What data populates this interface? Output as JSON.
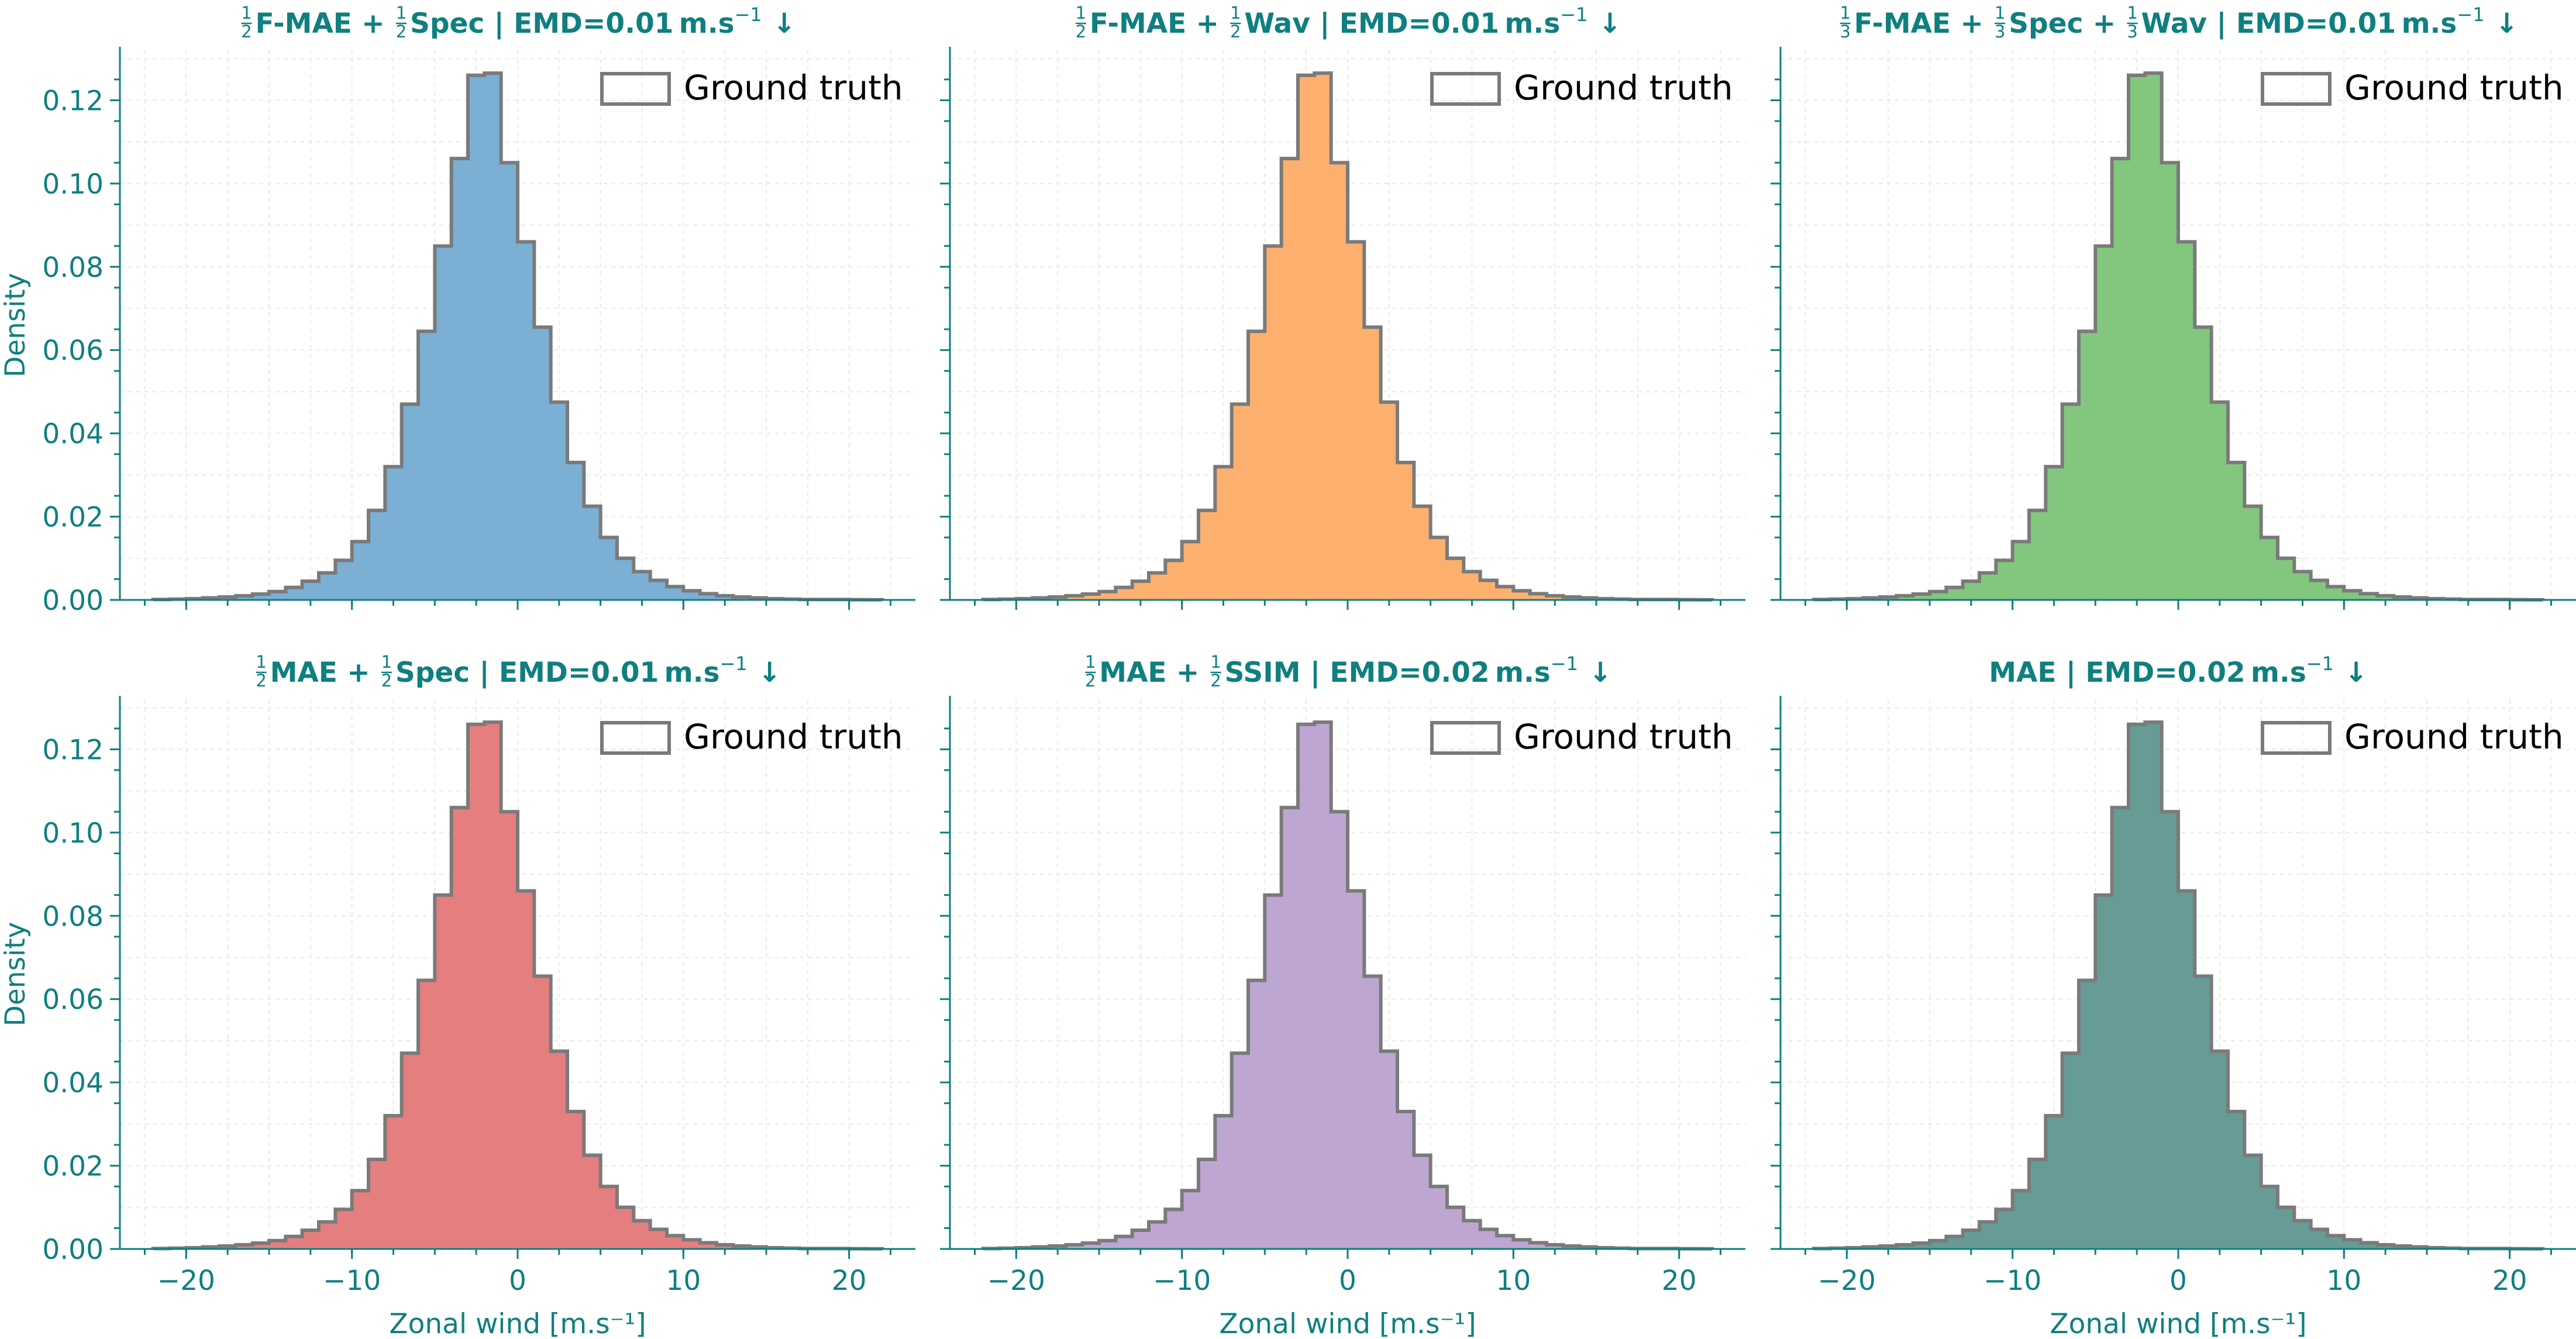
{
  "figure": {
    "accent_color": "#0f7f7f",
    "ylabel": "Density",
    "xlabel": "Zonal wind [m.s⁻¹]",
    "legend_label": "Ground truth",
    "legend_loc": "upper right",
    "grid": true
  },
  "chart_data": [
    {
      "type": "histogram",
      "color": "#7bafd4",
      "title": "½F-MAE + ½Spec | EMD=0.01 m.s⁻¹ ↓",
      "title_parts": [
        {
          "kind": "frac",
          "num": "1",
          "den": "2"
        },
        {
          "kind": "text",
          "text": "F-MAE + "
        },
        {
          "kind": "frac",
          "num": "1",
          "den": "2"
        },
        {
          "kind": "text",
          "text": "Spec | EMD=0.01 m.s"
        },
        {
          "kind": "sup",
          "text": "−1"
        },
        {
          "kind": "text",
          "text": " ↓"
        }
      ],
      "xlim": [
        -24,
        24
      ],
      "ylim": [
        0,
        0.132
      ],
      "xticks": [
        -20,
        -10,
        0,
        10,
        20
      ],
      "yticks": [
        0.0,
        0.02,
        0.04,
        0.06,
        0.08,
        0.1,
        0.12
      ],
      "bin_edges_start": -22,
      "bin_width": 1.0,
      "density": [
        0.0001,
        0.0002,
        0.0003,
        0.0005,
        0.0007,
        0.001,
        0.0014,
        0.002,
        0.003,
        0.0045,
        0.0065,
        0.0095,
        0.014,
        0.0215,
        0.032,
        0.047,
        0.0645,
        0.085,
        0.106,
        0.126,
        0.1265,
        0.105,
        0.086,
        0.0655,
        0.0475,
        0.033,
        0.0225,
        0.015,
        0.01,
        0.0068,
        0.0047,
        0.0032,
        0.0022,
        0.0015,
        0.001,
        0.0007,
        0.0005,
        0.0003,
        0.0002,
        0.0001,
        0.0001,
        0.0001,
        5e-05,
        3e-05
      ]
    },
    {
      "type": "histogram",
      "color": "#fdb06e",
      "title": "½F-MAE + ½Wav | EMD=0.01 m.s⁻¹ ↓",
      "title_parts": [
        {
          "kind": "frac",
          "num": "1",
          "den": "2"
        },
        {
          "kind": "text",
          "text": "F-MAE + "
        },
        {
          "kind": "frac",
          "num": "1",
          "den": "2"
        },
        {
          "kind": "text",
          "text": "Wav | EMD=0.01 m.s"
        },
        {
          "kind": "sup",
          "text": "−1"
        },
        {
          "kind": "text",
          "text": " ↓"
        }
      ],
      "xlim": [
        -24,
        24
      ],
      "ylim": [
        0,
        0.132
      ],
      "xticks": [
        -20,
        -10,
        0,
        10,
        20
      ],
      "yticks": [
        0.0,
        0.02,
        0.04,
        0.06,
        0.08,
        0.1,
        0.12
      ],
      "bin_edges_start": -22,
      "bin_width": 1.0,
      "density": [
        0.0001,
        0.0002,
        0.0003,
        0.0005,
        0.0007,
        0.001,
        0.0014,
        0.002,
        0.003,
        0.0045,
        0.0065,
        0.0095,
        0.014,
        0.0215,
        0.032,
        0.047,
        0.0645,
        0.085,
        0.106,
        0.126,
        0.1265,
        0.105,
        0.086,
        0.0655,
        0.0475,
        0.033,
        0.0225,
        0.015,
        0.01,
        0.0068,
        0.0047,
        0.0032,
        0.0022,
        0.0015,
        0.001,
        0.0007,
        0.0005,
        0.0003,
        0.0002,
        0.0001,
        0.0001,
        0.0001,
        5e-05,
        3e-05
      ]
    },
    {
      "type": "histogram",
      "color": "#83c67e",
      "title": "⅓F-MAE + ⅓Spec + ⅓Wav | EMD=0.01 m.s⁻¹ ↓",
      "title_parts": [
        {
          "kind": "frac",
          "num": "1",
          "den": "3"
        },
        {
          "kind": "text",
          "text": "F-MAE + "
        },
        {
          "kind": "frac",
          "num": "1",
          "den": "3"
        },
        {
          "kind": "text",
          "text": "Spec + "
        },
        {
          "kind": "frac",
          "num": "1",
          "den": "3"
        },
        {
          "kind": "text",
          "text": "Wav | EMD=0.01 m.s"
        },
        {
          "kind": "sup",
          "text": "−1"
        },
        {
          "kind": "text",
          "text": " ↓"
        }
      ],
      "xlim": [
        -24,
        24
      ],
      "ylim": [
        0,
        0.132
      ],
      "xticks": [
        -20,
        -10,
        0,
        10,
        20
      ],
      "yticks": [
        0.0,
        0.02,
        0.04,
        0.06,
        0.08,
        0.1,
        0.12
      ],
      "bin_edges_start": -22,
      "bin_width": 1.0,
      "density": [
        0.0001,
        0.0002,
        0.0003,
        0.0005,
        0.0007,
        0.001,
        0.0014,
        0.002,
        0.003,
        0.0045,
        0.0065,
        0.0095,
        0.014,
        0.0215,
        0.032,
        0.047,
        0.0645,
        0.085,
        0.106,
        0.126,
        0.1265,
        0.105,
        0.086,
        0.0655,
        0.0475,
        0.033,
        0.0225,
        0.015,
        0.01,
        0.0068,
        0.0047,
        0.0032,
        0.0022,
        0.0015,
        0.001,
        0.0007,
        0.0005,
        0.0003,
        0.0002,
        0.0001,
        0.0001,
        0.0001,
        5e-05,
        3e-05
      ]
    },
    {
      "type": "histogram",
      "color": "#e57e7f",
      "title": "½MAE + ½Spec | EMD=0.01 m.s⁻¹ ↓",
      "title_parts": [
        {
          "kind": "frac",
          "num": "1",
          "den": "2"
        },
        {
          "kind": "text",
          "text": "MAE + "
        },
        {
          "kind": "frac",
          "num": "1",
          "den": "2"
        },
        {
          "kind": "text",
          "text": "Spec | EMD=0.01 m.s"
        },
        {
          "kind": "sup",
          "text": "−1"
        },
        {
          "kind": "text",
          "text": " ↓"
        }
      ],
      "xlim": [
        -24,
        24
      ],
      "ylim": [
        0,
        0.132
      ],
      "xticks": [
        -20,
        -10,
        0,
        10,
        20
      ],
      "yticks": [
        0.0,
        0.02,
        0.04,
        0.06,
        0.08,
        0.1,
        0.12
      ],
      "bin_edges_start": -22,
      "bin_width": 1.0,
      "density": [
        0.0001,
        0.0002,
        0.0003,
        0.0005,
        0.0007,
        0.001,
        0.0014,
        0.002,
        0.003,
        0.0045,
        0.0065,
        0.0095,
        0.014,
        0.0215,
        0.032,
        0.047,
        0.0645,
        0.085,
        0.106,
        0.126,
        0.1265,
        0.105,
        0.086,
        0.0655,
        0.0475,
        0.033,
        0.0225,
        0.015,
        0.01,
        0.0068,
        0.0047,
        0.0032,
        0.0022,
        0.0015,
        0.001,
        0.0007,
        0.0005,
        0.0003,
        0.0002,
        0.0001,
        0.0001,
        0.0001,
        5e-05,
        3e-05
      ]
    },
    {
      "type": "histogram",
      "color": "#bea6d3",
      "title": "½MAE + ½SSIM | EMD=0.02 m.s⁻¹ ↓",
      "title_parts": [
        {
          "kind": "frac",
          "num": "1",
          "den": "2"
        },
        {
          "kind": "text",
          "text": "MAE + "
        },
        {
          "kind": "frac",
          "num": "1",
          "den": "2"
        },
        {
          "kind": "text",
          "text": "SSIM | EMD=0.02 m.s"
        },
        {
          "kind": "sup",
          "text": "−1"
        },
        {
          "kind": "text",
          "text": " ↓"
        }
      ],
      "xlim": [
        -24,
        24
      ],
      "ylim": [
        0,
        0.132
      ],
      "xticks": [
        -20,
        -10,
        0,
        10,
        20
      ],
      "yticks": [
        0.0,
        0.02,
        0.04,
        0.06,
        0.08,
        0.1,
        0.12
      ],
      "bin_edges_start": -22,
      "bin_width": 1.0,
      "density": [
        0.0001,
        0.0002,
        0.0003,
        0.0005,
        0.0007,
        0.001,
        0.0014,
        0.002,
        0.003,
        0.0045,
        0.0065,
        0.0095,
        0.014,
        0.0215,
        0.032,
        0.047,
        0.0645,
        0.085,
        0.106,
        0.126,
        0.1265,
        0.105,
        0.086,
        0.0655,
        0.0475,
        0.033,
        0.0225,
        0.015,
        0.01,
        0.0068,
        0.0047,
        0.0032,
        0.0022,
        0.0015,
        0.001,
        0.0007,
        0.0005,
        0.0003,
        0.0002,
        0.0001,
        0.0001,
        0.0001,
        5e-05,
        3e-05
      ]
    },
    {
      "type": "histogram",
      "color": "#669b96",
      "title": "MAE | EMD=0.02 m.s⁻¹ ↓",
      "title_parts": [
        {
          "kind": "text",
          "text": "MAE | EMD=0.02 m.s"
        },
        {
          "kind": "sup",
          "text": "−1"
        },
        {
          "kind": "text",
          "text": " ↓"
        }
      ],
      "xlim": [
        -24,
        24
      ],
      "ylim": [
        0,
        0.132
      ],
      "xticks": [
        -20,
        -10,
        0,
        10,
        20
      ],
      "yticks": [
        0.0,
        0.02,
        0.04,
        0.06,
        0.08,
        0.1,
        0.12
      ],
      "bin_edges_start": -22,
      "bin_width": 1.0,
      "density": [
        0.0001,
        0.0002,
        0.0003,
        0.0005,
        0.0007,
        0.001,
        0.0014,
        0.002,
        0.003,
        0.0045,
        0.0065,
        0.0095,
        0.014,
        0.0215,
        0.032,
        0.047,
        0.0645,
        0.085,
        0.106,
        0.126,
        0.1265,
        0.105,
        0.086,
        0.0655,
        0.0475,
        0.033,
        0.0225,
        0.015,
        0.01,
        0.0068,
        0.0047,
        0.0032,
        0.0022,
        0.0015,
        0.001,
        0.0007,
        0.0005,
        0.0003,
        0.0002,
        0.0001,
        0.0001,
        0.0001,
        5e-05,
        3e-05
      ]
    }
  ]
}
